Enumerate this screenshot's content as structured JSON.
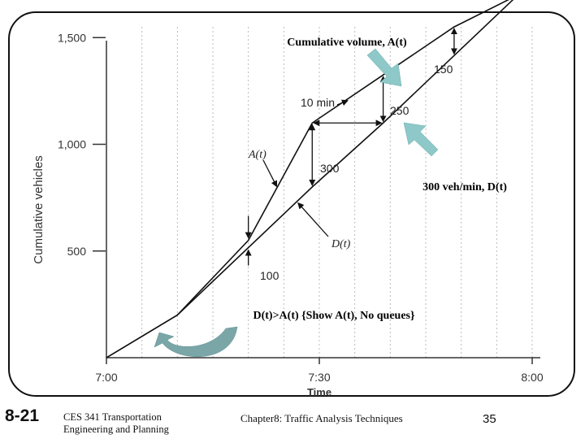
{
  "chart_data": {
    "type": "line",
    "xlabel": "Time",
    "ylabel": "Cumulative vehicles",
    "x_ticks": [
      "7:00",
      "7:30",
      "8:00"
    ],
    "x_tick_minutes": [
      0,
      30,
      60
    ],
    "y_ticks": [
      "500",
      "1,000",
      "1,500"
    ],
    "y_tick_values": [
      500,
      1000,
      1500
    ],
    "xlim": [
      0,
      60
    ],
    "ylim": [
      0,
      1600
    ],
    "grid": "vertical-dashed",
    "series": [
      {
        "name": "A(t)",
        "minutes": [
          0,
          10,
          20,
          29,
          49,
          58
        ],
        "values": [
          0,
          200,
          550,
          1100,
          1550,
          1700
        ]
      },
      {
        "name": "D(t)",
        "minutes": [
          0,
          10,
          29,
          39,
          58
        ],
        "values": [
          0,
          200,
          800,
          1100,
          1700
        ]
      }
    ],
    "annotations": {
      "ten_min": "10 min",
      "three_hundred": "300",
      "two_fifty": "250",
      "one_fifty": "150",
      "one_hundred": "100",
      "a_label": "A(t)",
      "d_label": "D(t)"
    }
  },
  "callouts": {
    "cumulative": "Cumulative volume, A(t)",
    "rate": "300 veh/min, D(t)",
    "no_queue": "D(t)>A(t) {Show A(t), No queues}"
  },
  "colors": {
    "arrow": "#8ec8c8",
    "curl": "#7aa6a8",
    "line": "#111111"
  },
  "footer": {
    "slide_number": "8-21",
    "course_line1": "CES 341 Transportation",
    "course_line2": "Engineering and Planning",
    "chapter": "Chapter8: Traffic Analysis Techniques",
    "page": "35"
  }
}
